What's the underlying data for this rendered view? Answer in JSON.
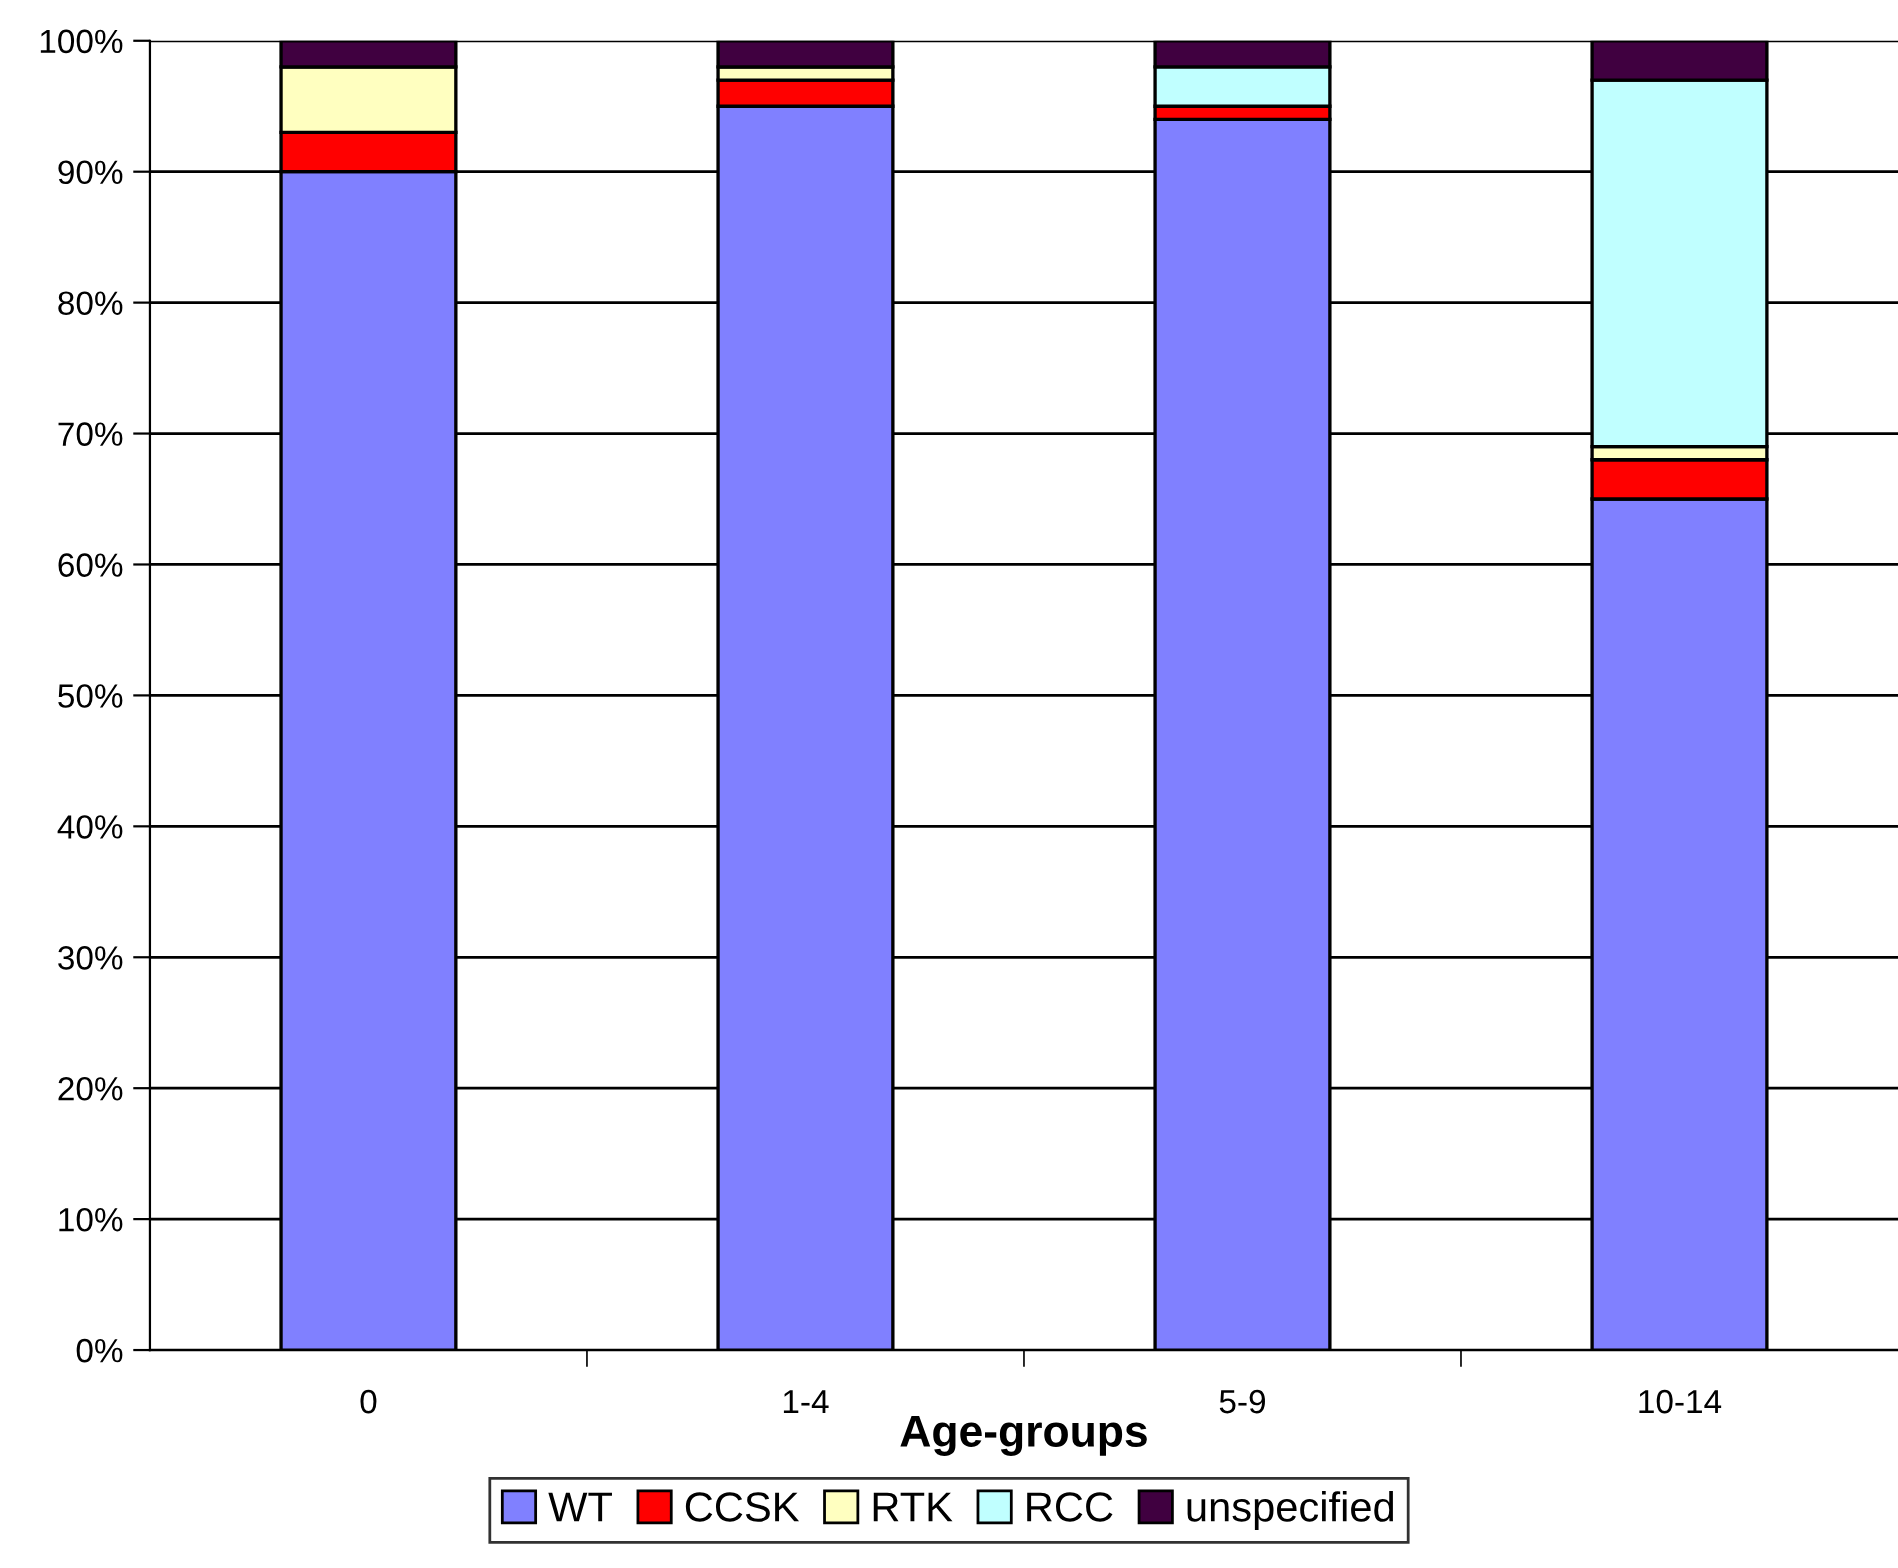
{
  "chart_data": {
    "type": "bar",
    "stacked": true,
    "xlabel": "Age-groups",
    "categories": [
      "0",
      "1-4",
      "5-9",
      "10-14"
    ],
    "series": [
      {
        "name": "WT",
        "color": "#8080ff",
        "values": [
          90,
          95,
          94,
          65
        ]
      },
      {
        "name": "CCSK",
        "color": "#ff0000",
        "values": [
          3,
          2,
          1,
          3
        ]
      },
      {
        "name": "RTK",
        "color": "#ffffc0",
        "values": [
          5,
          1,
          0,
          1
        ]
      },
      {
        "name": "RCC",
        "color": "#c0ffff",
        "values": [
          0,
          0,
          3,
          28
        ]
      },
      {
        "name": "unspecified",
        "color": "#400040",
        "values": [
          2,
          2,
          2,
          3
        ]
      }
    ],
    "ylim": [
      0,
      100
    ],
    "yticks": [
      {
        "value": 0,
        "label": "0%"
      },
      {
        "value": 10,
        "label": "10%"
      },
      {
        "value": 20,
        "label": "20%"
      },
      {
        "value": 30,
        "label": "30%"
      },
      {
        "value": 40,
        "label": "40%"
      },
      {
        "value": 50,
        "label": "50%"
      },
      {
        "value": 60,
        "label": "60%"
      },
      {
        "value": 70,
        "label": "70%"
      },
      {
        "value": 80,
        "label": "80%"
      },
      {
        "value": 90,
        "label": "90%"
      },
      {
        "value": 100,
        "label": "100%"
      }
    ],
    "grid": "y",
    "legend": "bottom"
  }
}
